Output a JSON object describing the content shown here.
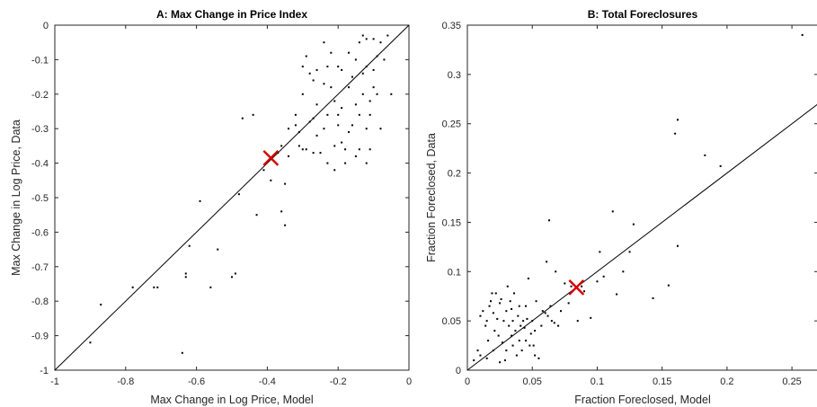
{
  "chart_data": [
    {
      "type": "scatter",
      "title": "A: Max Change in Price Index",
      "xlabel": "Max Change in Log Price, Model",
      "ylabel": "Max Change in Log Price, Data",
      "xlim": [
        -1,
        0
      ],
      "ylim": [
        -1,
        0
      ],
      "xticks": [
        -1,
        -0.8,
        -0.6,
        -0.4,
        -0.2,
        0
      ],
      "xtick_labels": [
        "-1",
        "-0.8",
        "-0.6",
        "-0.4",
        "-0.2",
        "0"
      ],
      "yticks": [
        -1,
        -0.9,
        -0.8,
        -0.7,
        -0.6,
        -0.5,
        -0.4,
        -0.3,
        -0.2,
        -0.1,
        0
      ],
      "ytick_labels": [
        "-1",
        "-0.9",
        "-0.8",
        "-0.7",
        "-0.6",
        "-0.5",
        "-0.4",
        "-0.3",
        "-0.2",
        "-0.1",
        "0"
      ],
      "grid": false,
      "reference_line": "45-degree",
      "point_color": "#000000",
      "marker_color": "#d40000",
      "mean_marker": [
        -0.39,
        -0.385
      ],
      "points": [
        [
          -0.9,
          -0.92
        ],
        [
          -0.87,
          -0.81
        ],
        [
          -0.78,
          -0.76
        ],
        [
          -0.72,
          -0.76
        ],
        [
          -0.71,
          -0.76
        ],
        [
          -0.64,
          -0.95
        ],
        [
          -0.63,
          -0.72
        ],
        [
          -0.63,
          -0.73
        ],
        [
          -0.62,
          -0.64
        ],
        [
          -0.59,
          -0.51
        ],
        [
          -0.56,
          -0.76
        ],
        [
          -0.54,
          -0.65
        ],
        [
          -0.5,
          -0.73
        ],
        [
          -0.49,
          -0.72
        ],
        [
          -0.48,
          -0.49
        ],
        [
          -0.47,
          -0.27
        ],
        [
          -0.44,
          -0.26
        ],
        [
          -0.43,
          -0.55
        ],
        [
          -0.41,
          -0.42
        ],
        [
          -0.39,
          -0.45
        ],
        [
          -0.37,
          -0.37
        ],
        [
          -0.36,
          -0.35
        ],
        [
          -0.36,
          -0.54
        ],
        [
          -0.35,
          -0.58
        ],
        [
          -0.35,
          -0.46
        ],
        [
          -0.34,
          -0.38
        ],
        [
          -0.34,
          -0.3
        ],
        [
          -0.32,
          -0.29
        ],
        [
          -0.31,
          -0.31
        ],
        [
          -0.31,
          -0.35
        ],
        [
          -0.3,
          -0.12
        ],
        [
          -0.3,
          -0.2
        ],
        [
          -0.29,
          -0.09
        ],
        [
          -0.29,
          -0.36
        ],
        [
          -0.28,
          -0.28
        ],
        [
          -0.28,
          -0.14
        ],
        [
          -0.27,
          -0.27
        ],
        [
          -0.27,
          -0.37
        ],
        [
          -0.26,
          -0.23
        ],
        [
          -0.26,
          -0.13
        ],
        [
          -0.25,
          -0.37
        ],
        [
          -0.24,
          -0.17
        ],
        [
          -0.24,
          -0.3
        ],
        [
          -0.23,
          -0.12
        ],
        [
          -0.23,
          -0.4
        ],
        [
          -0.22,
          -0.18
        ],
        [
          -0.22,
          -0.08
        ],
        [
          -0.21,
          -0.22
        ],
        [
          -0.21,
          -0.35
        ],
        [
          -0.21,
          -0.42
        ],
        [
          -0.2,
          -0.12
        ],
        [
          -0.2,
          -0.26
        ],
        [
          -0.19,
          -0.13
        ],
        [
          -0.19,
          -0.24
        ],
        [
          -0.18,
          -0.36
        ],
        [
          -0.18,
          -0.4
        ],
        [
          -0.17,
          -0.31
        ],
        [
          -0.17,
          -0.18
        ],
        [
          -0.16,
          -0.15
        ],
        [
          -0.16,
          -0.29
        ],
        [
          -0.15,
          -0.23
        ],
        [
          -0.15,
          -0.1
        ],
        [
          -0.14,
          -0.36
        ],
        [
          -0.14,
          -0.26
        ],
        [
          -0.13,
          -0.14
        ],
        [
          -0.13,
          -0.2
        ],
        [
          -0.13,
          -0.03
        ],
        [
          -0.12,
          -0.12
        ],
        [
          -0.12,
          -0.3
        ],
        [
          -0.12,
          -0.4
        ],
        [
          -0.11,
          -0.22
        ],
        [
          -0.11,
          -0.26
        ],
        [
          -0.11,
          -0.36
        ],
        [
          -0.1,
          -0.04
        ],
        [
          -0.1,
          -0.13
        ],
        [
          -0.1,
          -0.18
        ],
        [
          -0.09,
          -0.09
        ],
        [
          -0.09,
          -0.2
        ],
        [
          -0.08,
          -0.3
        ],
        [
          -0.07,
          -0.1
        ],
        [
          -0.06,
          -0.03
        ],
        [
          -0.05,
          -0.2
        ],
        [
          -0.08,
          -0.05
        ],
        [
          -0.12,
          -0.04
        ],
        [
          -0.17,
          -0.08
        ],
        [
          -0.23,
          -0.26
        ],
        [
          -0.26,
          -0.32
        ],
        [
          -0.3,
          -0.36
        ],
        [
          -0.32,
          -0.26
        ],
        [
          -0.27,
          -0.16
        ],
        [
          -0.19,
          -0.34
        ],
        [
          -0.15,
          -0.38
        ],
        [
          -0.14,
          -0.05
        ],
        [
          -0.24,
          -0.05
        ],
        [
          -0.2,
          -0.29
        ]
      ]
    },
    {
      "type": "scatter",
      "title": "B: Total Foreclosures",
      "xlabel": "Fraction Foreclosed, Model",
      "ylabel": "Fraction Foreclosed, Data",
      "xlim": [
        0,
        0.27
      ],
      "ylim": [
        0,
        0.35
      ],
      "xticks": [
        0,
        0.05,
        0.1,
        0.15,
        0.2,
        0.25
      ],
      "xtick_labels": [
        "0",
        "0.05",
        "0.1",
        "0.15",
        "0.2",
        "0.25"
      ],
      "yticks": [
        0,
        0.05,
        0.1,
        0.15,
        0.2,
        0.25,
        0.3,
        0.35
      ],
      "ytick_labels": [
        "0",
        "0.05",
        "0.1",
        "0.15",
        "0.2",
        "0.25",
        "0.3",
        "0.35"
      ],
      "grid": false,
      "reference_line": "45-degree",
      "point_color": "#000000",
      "marker_color": "#d40000",
      "mean_marker": [
        0.084,
        0.084
      ],
      "points": [
        [
          0.005,
          0.01
        ],
        [
          0.008,
          0.02
        ],
        [
          0.01,
          0.015
        ],
        [
          0.01,
          0.055
        ],
        [
          0.012,
          0.06
        ],
        [
          0.014,
          0.045
        ],
        [
          0.015,
          0.012
        ],
        [
          0.016,
          0.03
        ],
        [
          0.017,
          0.065
        ],
        [
          0.018,
          0.07
        ],
        [
          0.019,
          0.078
        ],
        [
          0.02,
          0.02
        ],
        [
          0.021,
          0.04
        ],
        [
          0.022,
          0.078
        ],
        [
          0.023,
          0.052
        ],
        [
          0.024,
          0.035
        ],
        [
          0.025,
          0.008
        ],
        [
          0.025,
          0.068
        ],
        [
          0.026,
          0.072
        ],
        [
          0.027,
          0.028
        ],
        [
          0.028,
          0.05
        ],
        [
          0.029,
          0.01
        ],
        [
          0.03,
          0.02
        ],
        [
          0.03,
          0.06
        ],
        [
          0.031,
          0.085
        ],
        [
          0.032,
          0.045
        ],
        [
          0.033,
          0.07
        ],
        [
          0.034,
          0.035
        ],
        [
          0.035,
          0.025
        ],
        [
          0.035,
          0.05
        ],
        [
          0.036,
          0.078
        ],
        [
          0.037,
          0.04
        ],
        [
          0.038,
          0.015
        ],
        [
          0.039,
          0.055
        ],
        [
          0.04,
          0.03
        ],
        [
          0.04,
          0.065
        ],
        [
          0.041,
          0.045
        ],
        [
          0.042,
          0.02
        ],
        [
          0.043,
          0.05
        ],
        [
          0.044,
          0.043
        ],
        [
          0.045,
          0.065
        ],
        [
          0.045,
          0.03
        ],
        [
          0.046,
          0.052
        ],
        [
          0.047,
          0.093
        ],
        [
          0.048,
          0.025
        ],
        [
          0.049,
          0.037
        ],
        [
          0.05,
          0.05
        ],
        [
          0.051,
          0.025
        ],
        [
          0.052,
          0.015
        ],
        [
          0.053,
          0.07
        ],
        [
          0.055,
          0.012
        ],
        [
          0.057,
          0.045
        ],
        [
          0.058,
          0.06
        ],
        [
          0.06,
          0.058
        ],
        [
          0.061,
          0.11
        ],
        [
          0.062,
          0.055
        ],
        [
          0.063,
          0.152
        ],
        [
          0.064,
          0.065
        ],
        [
          0.065,
          0.05
        ],
        [
          0.067,
          0.048
        ],
        [
          0.068,
          0.1
        ],
        [
          0.07,
          0.045
        ],
        [
          0.072,
          0.06
        ],
        [
          0.075,
          0.088
        ],
        [
          0.078,
          0.068
        ],
        [
          0.08,
          0.085
        ],
        [
          0.085,
          0.05
        ],
        [
          0.088,
          0.085
        ],
        [
          0.09,
          0.08
        ],
        [
          0.095,
          0.053
        ],
        [
          0.1,
          0.09
        ],
        [
          0.102,
          0.12
        ],
        [
          0.105,
          0.095
        ],
        [
          0.112,
          0.161
        ],
        [
          0.115,
          0.077
        ],
        [
          0.12,
          0.1
        ],
        [
          0.125,
          0.12
        ],
        [
          0.128,
          0.148
        ],
        [
          0.143,
          0.073
        ],
        [
          0.155,
          0.086
        ],
        [
          0.16,
          0.24
        ],
        [
          0.162,
          0.254
        ],
        [
          0.162,
          0.126
        ],
        [
          0.183,
          0.218
        ],
        [
          0.195,
          0.207
        ],
        [
          0.258,
          0.34
        ],
        [
          0.015,
          0.05
        ],
        [
          0.02,
          0.058
        ],
        [
          0.034,
          0.062
        ],
        [
          0.052,
          0.04
        ]
      ]
    }
  ]
}
